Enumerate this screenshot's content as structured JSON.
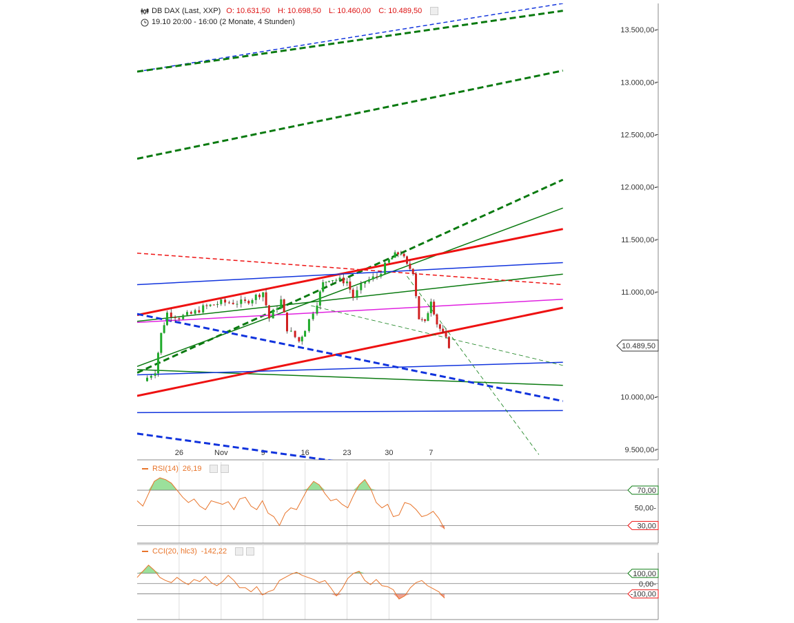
{
  "header": {
    "instrument": "DB DAX (Last, XXP)",
    "open": "O: 10.631,50",
    "high": "H: 10.698,50",
    "low": "L: 10.460,00",
    "close": "C: 10.489,50",
    "period": "19.10 20:00 - 16:00 (2 Monate, 4 Stunden)"
  },
  "colors": {
    "up": "#1faa2a",
    "down": "#d02020",
    "red": "#ee1111",
    "green": "#0a7a10",
    "blue": "#1033dd",
    "magenta": "#e020e0",
    "orange": "#e8742a"
  },
  "chart_data": [
    {
      "type": "candlestick",
      "title": "DB DAX (Last, XXP)",
      "ylim": [
        9400,
        13750
      ],
      "y_ticks": [
        "13.500,00",
        "13.000,00",
        "12.500,00",
        "12.000,00",
        "11.500,00",
        "11.000,00",
        "10.000,00",
        "9.500,00"
      ],
      "x_ticks": [
        "26",
        "Nov",
        "9",
        "16",
        "23",
        "30",
        "7"
      ],
      "last_price": "10.489,50",
      "close_path": [
        [
          "Oct 20",
          10150
        ],
        [
          "Oct 22",
          10250
        ],
        [
          "Oct 23",
          10600
        ],
        [
          "Oct 24",
          10800
        ],
        [
          "Oct 26",
          10760
        ],
        [
          "Oct 28",
          10790
        ],
        [
          "Oct 30",
          10850
        ],
        [
          "Nov 2",
          10900
        ],
        [
          "Nov 4",
          10900
        ],
        [
          "Nov 6",
          10900
        ],
        [
          "Nov 9",
          11000
        ],
        [
          "Nov 10",
          10750
        ],
        [
          "Nov 12",
          10920
        ],
        [
          "Nov 13",
          10650
        ],
        [
          "Nov 15",
          10530
        ],
        [
          "Nov 16",
          10650
        ],
        [
          "Nov 18",
          10900
        ],
        [
          "Nov 19",
          11080
        ],
        [
          "Nov 20",
          11130
        ],
        [
          "Nov 23",
          11100
        ],
        [
          "Nov 24",
          10950
        ],
        [
          "Nov 26",
          11100
        ],
        [
          "Nov 28",
          11150
        ],
        [
          "Nov 30",
          11300
        ],
        [
          "Dec 1",
          11350
        ],
        [
          "Dec 2",
          11380
        ],
        [
          "Dec 3",
          11250
        ],
        [
          "Dec 4",
          11200
        ],
        [
          "Dec 5",
          10750
        ],
        [
          "Dec 6",
          10700
        ],
        [
          "Dec 7",
          10930
        ],
        [
          "Dec 8",
          10700
        ],
        [
          "Dec 9",
          10600
        ],
        [
          "Dec 10",
          10489.5
        ]
      ],
      "trendlines": [
        {
          "color": "#1033dd",
          "style": "dashed",
          "width": 1.5,
          "from": [
            "Oct 19",
            13100
          ],
          "to": [
            "Dec 29",
            13750
          ]
        },
        {
          "color": "#0a7a10",
          "style": "dashed",
          "width": 3,
          "from": [
            "Oct 19",
            13100
          ],
          "to": [
            "Dec 29",
            13680
          ]
        },
        {
          "color": "#0a7a10",
          "style": "dashed",
          "width": 3,
          "from": [
            "Oct 19",
            12270
          ],
          "to": [
            "Dec 29",
            13110
          ]
        },
        {
          "color": "#0a7a10",
          "style": "dashed",
          "width": 3,
          "from": [
            "Oct 19",
            10230
          ],
          "to": [
            "Dec 29",
            12070
          ]
        },
        {
          "color": "#0a7a10",
          "style": "solid",
          "width": 1.5,
          "from": [
            "Oct 19",
            10290
          ],
          "to": [
            "Dec 29",
            11800
          ]
        },
        {
          "color": "#0a7a10",
          "style": "solid",
          "width": 1.5,
          "from": [
            "Oct 19",
            10720
          ],
          "to": [
            "Dec 29",
            11170
          ]
        },
        {
          "color": "#0a7a10",
          "style": "solid",
          "width": 1.5,
          "from": [
            "Oct 19",
            10260
          ],
          "to": [
            "Dec 29",
            10110
          ]
        },
        {
          "color": "#ee1111",
          "style": "solid",
          "width": 3,
          "from": [
            "Oct 19",
            10780
          ],
          "to": [
            "Dec 29",
            11600
          ]
        },
        {
          "color": "#ee1111",
          "style": "solid",
          "width": 3,
          "from": [
            "Oct 19",
            10010
          ],
          "to": [
            "Dec 29",
            10850
          ]
        },
        {
          "color": "#ee1111",
          "style": "dashed",
          "width": 1.5,
          "from": [
            "Oct 19",
            11370
          ],
          "to": [
            "Dec 29",
            11070
          ]
        },
        {
          "color": "#1033dd",
          "style": "solid",
          "width": 1.5,
          "from": [
            "Oct 19",
            11070
          ],
          "to": [
            "Dec 29",
            11280
          ]
        },
        {
          "color": "#1033dd",
          "style": "solid",
          "width": 1.5,
          "from": [
            "Oct 19",
            10210
          ],
          "to": [
            "Dec 29",
            10330
          ]
        },
        {
          "color": "#1033dd",
          "style": "solid",
          "width": 1.5,
          "from": [
            "Oct 19",
            9850
          ],
          "to": [
            "Dec 29",
            9870
          ]
        },
        {
          "color": "#1033dd",
          "style": "dashed",
          "width": 3,
          "from": [
            "Oct 19",
            10790
          ],
          "to": [
            "Dec 29",
            9960
          ]
        },
        {
          "color": "#1033dd",
          "style": "dashed",
          "width": 3,
          "from": [
            "Oct 19",
            9650
          ],
          "to": [
            "Nov 22",
            9380
          ]
        },
        {
          "color": "#e020e0",
          "style": "solid",
          "width": 1.5,
          "from": [
            "Oct 19",
            10710
          ],
          "to": [
            "Dec 29",
            10930
          ]
        },
        {
          "color": "#0a7a10",
          "style": "dashed",
          "width": 0.8,
          "from": [
            "Nov 17",
            10870
          ],
          "to": [
            "Dec 29",
            10300
          ]
        },
        {
          "color": "#0a7a10",
          "style": "dashed",
          "width": 0.8,
          "from": [
            "Dec 3",
            11150
          ],
          "to": [
            "Dec 25",
            9450
          ]
        }
      ]
    },
    {
      "type": "line",
      "title": "RSI(14)",
      "last_value": "26,19",
      "ylim": [
        10,
        95
      ],
      "levels": [
        70,
        30
      ],
      "level_labels": [
        "70,00",
        "50,00",
        "30,00"
      ],
      "values": [
        58,
        52,
        66,
        80,
        84,
        82,
        78,
        70,
        62,
        56,
        60,
        52,
        48,
        58,
        56,
        54,
        57,
        48,
        60,
        62,
        52,
        48,
        58,
        44,
        40,
        30,
        44,
        50,
        48,
        60,
        72,
        80,
        76,
        66,
        58,
        60,
        54,
        50,
        64,
        76,
        82,
        72,
        56,
        50,
        54,
        40,
        42,
        56,
        54,
        48,
        40,
        42,
        46,
        38,
        26
      ]
    },
    {
      "type": "line",
      "title": "CCI(20, hlc3)",
      "last_value": "-142,22",
      "ylim": [
        -350,
        300
      ],
      "levels": [
        100,
        0,
        -100
      ],
      "level_labels": [
        "100,00",
        "0,00",
        "-100,00"
      ],
      "values": [
        60,
        120,
        180,
        130,
        60,
        30,
        10,
        60,
        20,
        -10,
        40,
        20,
        70,
        10,
        -20,
        20,
        80,
        30,
        -40,
        -40,
        -80,
        -30,
        -110,
        -80,
        -60,
        30,
        60,
        90,
        110,
        80,
        60,
        40,
        10,
        30,
        -40,
        -120,
        -50,
        50,
        100,
        120,
        30,
        -10,
        40,
        -20,
        -30,
        -60,
        -150,
        -120,
        -40,
        10,
        30,
        -20,
        -50,
        -80,
        -142
      ]
    }
  ]
}
